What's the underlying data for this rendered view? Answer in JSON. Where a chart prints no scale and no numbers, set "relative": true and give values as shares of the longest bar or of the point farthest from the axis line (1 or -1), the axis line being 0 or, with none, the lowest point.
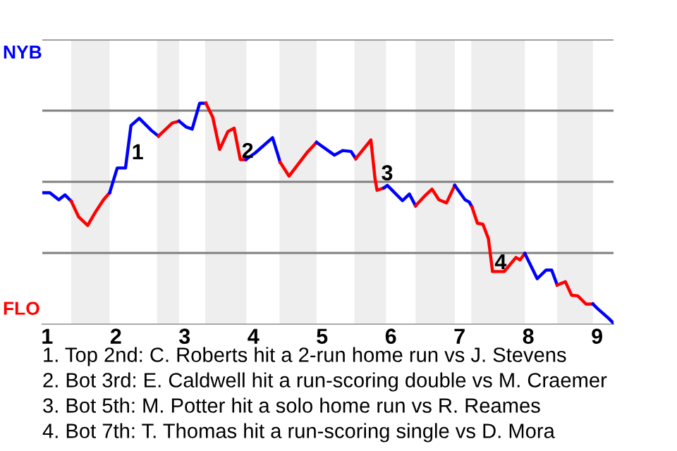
{
  "chart_data": {
    "type": "line",
    "relative": true,
    "xlim": [
      0.93,
      9.24
    ],
    "xticks": [
      1,
      2,
      3,
      4,
      5,
      6,
      7,
      8,
      9
    ],
    "grid": "y",
    "marker": "none",
    "line_style": "solid",
    "bands": [
      {
        "axis": "x",
        "from": 1.35,
        "to": 1.91,
        "color": "#eeeeee"
      },
      {
        "axis": "x",
        "from": 2.6,
        "to": 2.92,
        "color": "#eeeeee"
      },
      {
        "axis": "x",
        "from": 3.3,
        "to": 3.9,
        "color": "#eeeeee"
      },
      {
        "axis": "x",
        "from": 4.38,
        "to": 4.92,
        "color": "#eeeeee"
      },
      {
        "axis": "x",
        "from": 5.47,
        "to": 5.93,
        "color": "#eeeeee"
      },
      {
        "axis": "x",
        "from": 6.36,
        "to": 6.93,
        "color": "#eeeeee"
      },
      {
        "axis": "x",
        "from": 7.17,
        "to": 7.95,
        "color": "#eeeeee"
      },
      {
        "axis": "x",
        "from": 8.42,
        "to": 8.94,
        "color": "#eeeeee"
      }
    ],
    "series": [
      {
        "color": "#0000ff",
        "x": [
          0.93,
          1.04,
          1.17,
          1.26,
          1.35
        ],
        "values": [
          0.595,
          0.595,
          0.563,
          0.585,
          0.557
        ]
      },
      {
        "color": "#ff0000",
        "x": [
          1.35,
          1.46,
          1.59,
          1.7,
          1.82,
          1.91
        ],
        "values": [
          0.557,
          0.485,
          0.447,
          0.506,
          0.563,
          0.595
        ]
      },
      {
        "color": "#0000ff",
        "x": [
          1.91,
          2.02,
          2.14,
          2.22,
          2.34,
          2.52,
          2.62
        ],
        "values": [
          0.595,
          0.707,
          0.707,
          0.899,
          0.932,
          0.876,
          0.851
        ]
      },
      {
        "color": "#ff0000",
        "x": [
          2.62,
          2.82,
          2.92
        ],
        "values": [
          0.851,
          0.91,
          0.919
        ]
      },
      {
        "color": "#0000ff",
        "x": [
          2.92,
          3.02,
          3.11,
          3.22,
          3.31
        ],
        "values": [
          0.919,
          0.893,
          0.883,
          1,
          1
        ]
      },
      {
        "color": "#ff0000",
        "x": [
          3.31,
          3.41,
          3.51,
          3.63,
          3.72,
          3.81,
          3.89
        ],
        "values": [
          1,
          0.936,
          0.791,
          0.872,
          0.887,
          0.745,
          0.745
        ]
      },
      {
        "color": "#0000ff",
        "x": [
          3.89,
          4.03,
          4.28,
          4.39
        ],
        "values": [
          0.745,
          0.776,
          0.844,
          0.733
        ]
      },
      {
        "color": "#ff0000",
        "x": [
          4.39,
          4.52,
          4.79,
          4.92
        ],
        "values": [
          0.733,
          0.67,
          0.78,
          0.823
        ]
      },
      {
        "color": "#0000ff",
        "x": [
          4.92,
          5.18,
          5.3,
          5.42,
          5.49
        ],
        "values": [
          0.823,
          0.765,
          0.786,
          0.782,
          0.749
        ]
      },
      {
        "color": "#ff0000",
        "x": [
          5.49,
          5.71,
          5.77,
          5.8,
          5.9
        ],
        "values": [
          0.749,
          0.834,
          0.659,
          0.606,
          0.617
        ]
      },
      {
        "color": "#0000ff",
        "x": [
          5.9,
          5.95,
          6.17,
          6.27,
          6.36
        ],
        "values": [
          0.617,
          0.628,
          0.559,
          0.589,
          0.536
        ]
      },
      {
        "color": "#ff0000",
        "x": [
          6.36,
          6.49,
          6.6,
          6.7,
          6.81,
          6.93
        ],
        "values": [
          0.536,
          0.579,
          0.611,
          0.563,
          0.549,
          0.628
        ]
      },
      {
        "color": "#0000ff",
        "x": [
          6.93,
          7.08,
          7.14,
          7.18
        ],
        "values": [
          0.628,
          0.563,
          0.553,
          0.531
        ]
      },
      {
        "color": "#ff0000",
        "x": [
          7.18,
          7.26,
          7.34,
          7.42,
          7.48,
          7.65,
          7.82,
          7.88,
          7.95
        ],
        "values": [
          0.531,
          0.457,
          0.452,
          0.387,
          0.238,
          0.238,
          0.302,
          0.291,
          0.32
        ]
      },
      {
        "color": "#0000ff",
        "x": [
          7.95,
          8.13,
          8.26,
          8.34,
          8.42
        ],
        "values": [
          0.32,
          0.206,
          0.245,
          0.245,
          0.177
        ]
      },
      {
        "color": "#ff0000",
        "x": [
          8.42,
          8.54,
          8.63,
          8.72,
          8.84,
          8.94
        ],
        "values": [
          0.177,
          0.192,
          0.131,
          0.128,
          0.091,
          0.091
        ]
      },
      {
        "color": "#0000ff",
        "x": [
          8.94,
          9.01,
          9.17,
          9.24
        ],
        "values": [
          0.091,
          0.07,
          0.026,
          0.004
        ]
      }
    ],
    "annotations": [
      "NYB",
      "FLO",
      {
        "text": "1",
        "x": 2.26,
        "y": 0.772
      },
      {
        "text": "2",
        "x": 3.86,
        "y": 0.778
      },
      {
        "text": "3",
        "x": 5.89,
        "y": 0.677
      },
      {
        "text": "4",
        "x": 7.54,
        "y": 0.274
      },
      "1. Top 2nd: C. Roberts hit a 2-run home run vs J. Stevens",
      "2. Bot 3rd: E. Caldwell hit a run-scoring double vs M. Craemer",
      "3. Bot 5th: M. Potter hit a solo home run vs R. Reames",
      "4. Bot 7th: T. Thomas hit a run-scoring single vs D. Mora"
    ]
  }
}
